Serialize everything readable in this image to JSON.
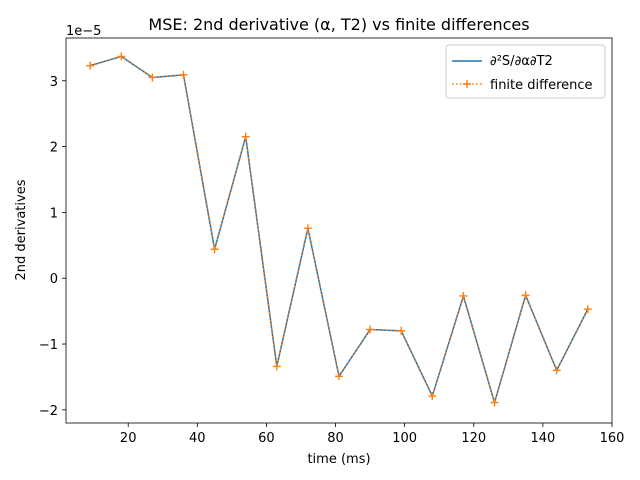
{
  "chart_data": {
    "type": "line",
    "title": "MSE: 2nd derivative (α, T2) vs finite differences",
    "xlabel": "time (ms)",
    "ylabel": "2nd derivatives",
    "y_offset_label": "1e−5",
    "xlim": [
      2,
      160
    ],
    "ylim": [
      -2.2e-05,
      3.65e-05
    ],
    "x_ticks": [
      20,
      40,
      60,
      80,
      100,
      120,
      140,
      160
    ],
    "x_tick_labels": [
      "20",
      "40",
      "60",
      "80",
      "100",
      "120",
      "140",
      "160"
    ],
    "y_ticks": [
      -2,
      -1,
      0,
      1,
      2,
      3
    ],
    "y_tick_labels": [
      "−2",
      "−1",
      "0",
      "1",
      "2",
      "3"
    ],
    "grid": false,
    "legend_position": "top-right",
    "x": [
      9,
      18,
      27,
      36,
      45,
      54,
      63,
      72,
      81,
      90,
      99,
      108,
      117,
      126,
      135,
      144,
      153
    ],
    "series": [
      {
        "name": "∂²S/∂α∂T2",
        "color": "#1f77b4",
        "line_style": "solid",
        "marker": "none",
        "values": [
          3.23e-05,
          3.37e-05,
          3.05e-05,
          3.09e-05,
          4.4e-06,
          2.15e-05,
          -1.34e-05,
          7.6e-06,
          -1.49e-05,
          -7.8e-06,
          -8e-06,
          -1.79e-05,
          -2.7e-06,
          -1.89e-05,
          -2.6e-06,
          -1.4e-05,
          -4.7e-06
        ]
      },
      {
        "name": "finite difference",
        "color": "#ff7f0e",
        "line_style": "dotted",
        "marker": "plus",
        "values": [
          3.23e-05,
          3.37e-05,
          3.05e-05,
          3.09e-05,
          4.4e-06,
          2.15e-05,
          -1.34e-05,
          7.6e-06,
          -1.49e-05,
          -7.8e-06,
          -8e-06,
          -1.79e-05,
          -2.7e-06,
          -1.89e-05,
          -2.6e-06,
          -1.4e-05,
          -4.7e-06
        ]
      }
    ]
  }
}
